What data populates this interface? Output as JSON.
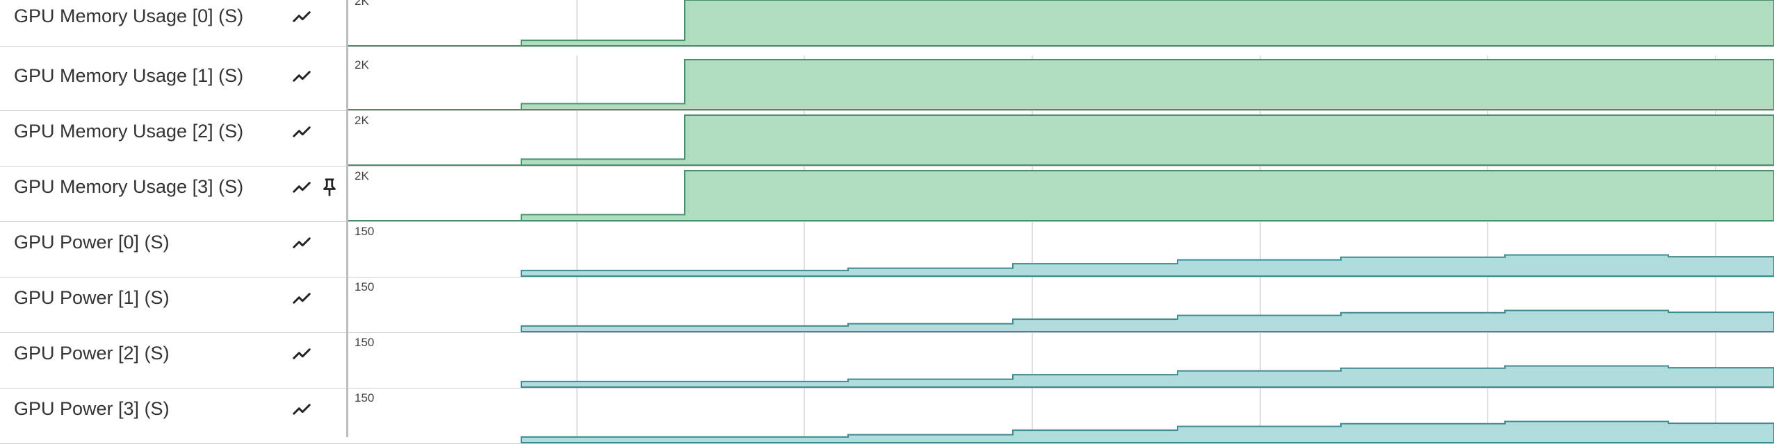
{
  "colors": {
    "memory_fill": "#b0dcc0",
    "memory_stroke": "#4a8f6b",
    "power_fill": "#b0dcdc",
    "power_stroke": "#3f8a91",
    "gridline": "#d5d5d5",
    "border": "#cfcfcf"
  },
  "tracks": [
    {
      "label": "GPU Memory Usage [0] (S)",
      "y_tick": "2K",
      "kind": "memory",
      "graph_icon": "line-chart-icon",
      "pinned": false
    },
    {
      "label": "GPU Memory Usage [1] (S)",
      "y_tick": "2K",
      "kind": "memory",
      "graph_icon": "line-chart-icon",
      "pinned": false
    },
    {
      "label": "GPU Memory Usage [2] (S)",
      "y_tick": "2K",
      "kind": "memory",
      "graph_icon": "line-chart-icon",
      "pinned": false
    },
    {
      "label": "GPU Memory Usage [3] (S)",
      "y_tick": "2K",
      "kind": "memory",
      "graph_icon": "line-chart-icon",
      "pinned": true
    },
    {
      "label": "GPU Power [0] (S)",
      "y_tick": "150",
      "kind": "power",
      "graph_icon": "line-chart-icon",
      "pinned": false
    },
    {
      "label": "GPU Power [1] (S)",
      "y_tick": "150",
      "kind": "power",
      "graph_icon": "line-chart-icon",
      "pinned": false
    },
    {
      "label": "GPU Power [2] (S)",
      "y_tick": "150",
      "kind": "power",
      "graph_icon": "line-chart-icon",
      "pinned": false
    },
    {
      "label": "GPU Power [3] (S)",
      "y_tick": "150",
      "kind": "power",
      "graph_icon": "line-chart-icon",
      "pinned": false
    }
  ],
  "series": {
    "memory": [
      0.0,
      0.12,
      1.0,
      1.0,
      1.0,
      1.0,
      1.0,
      1.0
    ],
    "power": [
      0.25,
      0.35,
      0.55,
      0.72,
      0.84,
      0.94,
      0.86
    ]
  }
}
